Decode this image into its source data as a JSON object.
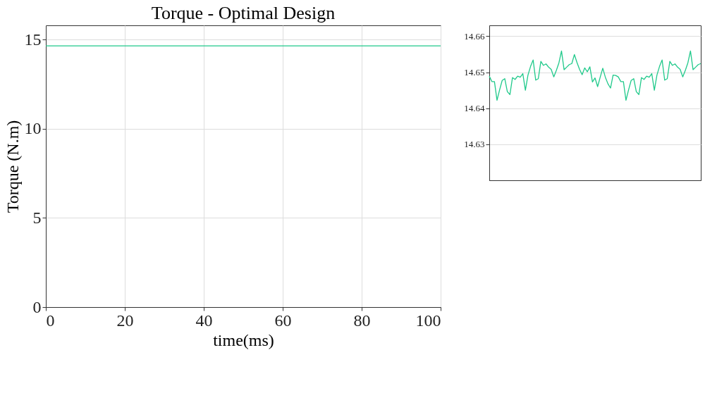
{
  "chart_data": [
    {
      "type": "line",
      "title": "Torque - Optimal Design",
      "xlabel": "time(ms)",
      "ylabel": "Torque (N.m)",
      "x": [
        0,
        100
      ],
      "series": [
        {
          "color": "#1fc98a",
          "values": [
            14.65,
            14.65
          ]
        }
      ],
      "xlim": [
        0,
        100
      ],
      "xticks": [
        0,
        20,
        40,
        60,
        80,
        100
      ],
      "ylim": [
        0,
        15.8
      ],
      "yticks": [
        0,
        5,
        10,
        15
      ],
      "grid": true
    },
    {
      "type": "line",
      "tick_labels": "y",
      "categories": [
        null,
        null,
        null,
        null,
        null,
        null,
        null,
        null,
        null,
        null,
        null,
        null,
        null,
        null,
        null,
        null,
        null,
        null,
        null,
        null,
        null,
        null,
        null,
        null,
        null,
        null,
        null,
        null,
        null,
        null,
        null,
        null,
        null,
        null,
        null,
        null,
        null,
        null,
        null,
        null,
        null,
        null,
        null,
        null,
        null,
        null,
        null,
        null,
        null,
        null,
        null,
        null,
        null,
        null,
        null,
        null,
        null,
        null,
        null,
        null,
        null,
        null,
        null,
        null,
        null,
        null,
        null,
        null,
        null,
        null,
        null,
        null,
        null,
        null,
        null,
        null,
        null,
        null,
        null,
        null,
        null,
        null,
        null
      ],
      "series": [
        {
          "color": "#1fc98a",
          "values": [
            14.6489,
            14.6474,
            14.6474,
            14.6422,
            14.6451,
            14.6477,
            14.6482,
            14.6446,
            14.6438,
            14.6485,
            14.648,
            14.6489,
            14.6486,
            14.6496,
            14.645,
            14.6492,
            14.6516,
            14.6534,
            14.6478,
            14.6482,
            14.653,
            14.6519,
            14.6523,
            14.6514,
            14.6508,
            14.6487,
            14.6505,
            14.6526,
            14.6559,
            14.6507,
            14.6514,
            14.6521,
            14.6524,
            14.6549,
            14.6527,
            14.6508,
            14.6493,
            14.6512,
            14.6501,
            14.6515,
            14.6473,
            14.6484,
            14.646,
            14.6486,
            14.6511,
            14.6486,
            14.6468,
            14.6456,
            14.6492,
            14.6491,
            14.6487,
            14.6474,
            14.6474,
            14.6422,
            14.6451,
            14.6477,
            14.6482,
            14.6446,
            14.6438,
            14.6485,
            14.648,
            14.6489,
            14.6486,
            14.6496,
            14.645,
            14.6492,
            14.6516,
            14.6534,
            14.6478,
            14.6482,
            14.653,
            14.6519,
            14.6523,
            14.6514,
            14.6508,
            14.6487,
            14.6505,
            14.6526,
            14.6559,
            14.6507,
            14.6514,
            14.6521,
            14.6524
          ]
        }
      ],
      "ylim": [
        14.62,
        14.663
      ],
      "yticks": [
        14.63,
        14.64,
        14.65,
        14.66
      ],
      "grid": "y"
    }
  ]
}
